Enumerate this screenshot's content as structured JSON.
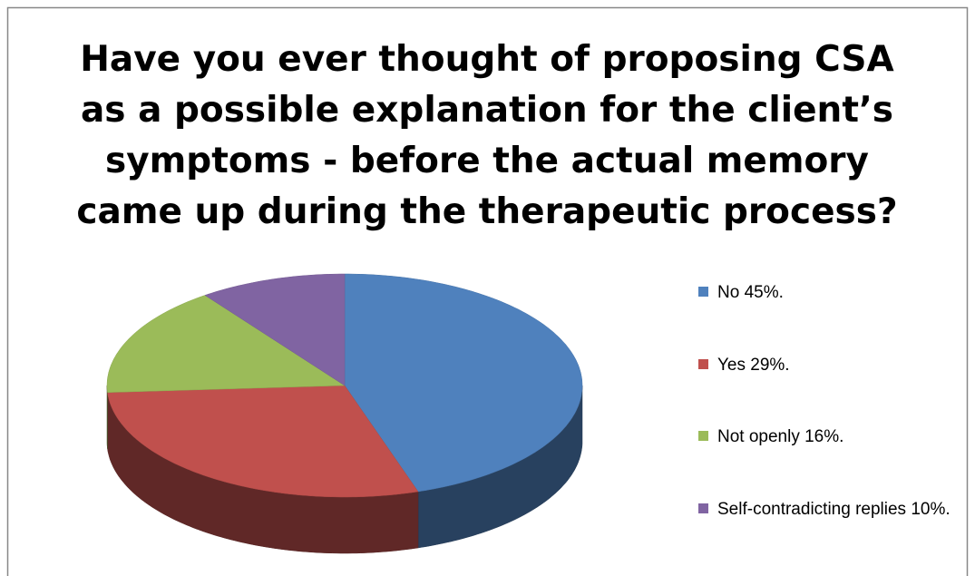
{
  "chart_data": {
    "type": "pie3d",
    "title": [
      "Have you ever thought of proposing CSA",
      "as a possible explanation for the client’s",
      "symptoms - before the actual memory",
      "came up during the therapeutic process?"
    ],
    "categories": [
      "No 45%.",
      "Yes 29%.",
      "Not openly 16%.",
      "Self-contradicting replies 10%."
    ],
    "values": [
      45,
      29,
      16,
      10
    ],
    "colors": [
      "#4f81bd",
      "#c0504d",
      "#9bbb59",
      "#8064a2"
    ],
    "legend": "right"
  }
}
